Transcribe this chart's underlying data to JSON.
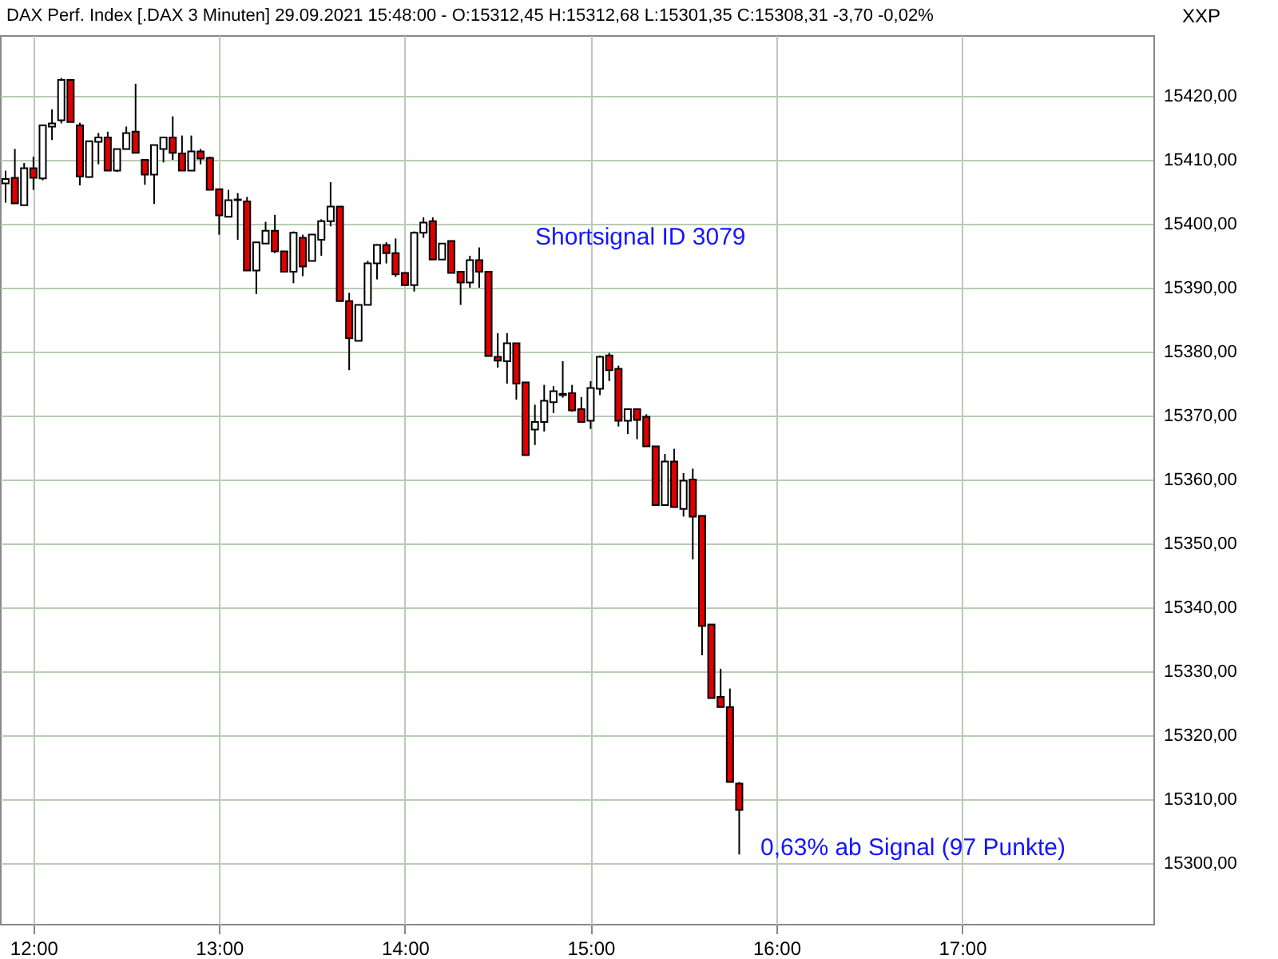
{
  "chart_data": {
    "type": "candlestick",
    "title": "DAX Perf. Index [.DAX  3 Minuten] 29.09.2021 15:48:00 - O:15312,45 H:15312,68 L:15301,35 C:15308,31 -3,70 -0,02%",
    "x": [
      11.85,
      11.9,
      11.95,
      12,
      12.05,
      12.1,
      12.15,
      12.2,
      12.25,
      12.3,
      12.35,
      12.4,
      12.45,
      12.5,
      12.55,
      12.6,
      12.65,
      12.7,
      12.75,
      12.8,
      12.85,
      12.9,
      12.95,
      13,
      13.05,
      13.1,
      13.15,
      13.2,
      13.25,
      13.3,
      13.35,
      13.4,
      13.45,
      13.5,
      13.55,
      13.6,
      13.65,
      13.7,
      13.75,
      13.8,
      13.85,
      13.9,
      13.95,
      14,
      14.05,
      14.1,
      14.15,
      14.2,
      14.25,
      14.3,
      14.35,
      14.4,
      14.45,
      14.5,
      14.55,
      14.6,
      14.65,
      14.7,
      14.75,
      14.8,
      14.85,
      14.9,
      14.95,
      15,
      15.05,
      15.1,
      15.15,
      15.2,
      15.25,
      15.3,
      15.35,
      15.4,
      15.45,
      15.5,
      15.55,
      15.6,
      15.65,
      15.7,
      15.75,
      15.8
    ],
    "ohlc": [
      [
        15406.3,
        15408.3,
        15403.3,
        15407
      ],
      [
        15407.2,
        15411.7,
        15403.2,
        15403.2
      ],
      [
        15402.9,
        15409.5,
        15402.9,
        15408.7
      ],
      [
        15408.7,
        15410.5,
        15405.3,
        15407.2
      ],
      [
        15407.1,
        15415.4,
        15406.8,
        15415.4
      ],
      [
        15415.2,
        15417.9,
        15413.1,
        15415.7
      ],
      [
        15416.2,
        15422.8,
        15415.7,
        15422.5
      ],
      [
        15422.5,
        15422.5,
        15415.9,
        15415.9
      ],
      [
        15415.4,
        15415.8,
        15406,
        15407.4
      ],
      [
        15407.3,
        15413,
        15407.2,
        15412.9
      ],
      [
        15412.8,
        15414.2,
        15409.3,
        15413.5
      ],
      [
        15413.5,
        15414.4,
        15408.3,
        15408.3
      ],
      [
        15408.3,
        15411.7,
        15408.1,
        15411.7
      ],
      [
        15411.7,
        15415.2,
        15411.7,
        15414.2
      ],
      [
        15414.4,
        15421.9,
        15411.1,
        15411.1
      ],
      [
        15410,
        15410,
        15406.1,
        15407.7
      ],
      [
        15407.7,
        15412.3,
        15403.1,
        15412.3
      ],
      [
        15411.7,
        15413.5,
        15409.6,
        15413.5
      ],
      [
        15413.5,
        15416.8,
        15410,
        15411.1
      ],
      [
        15411,
        15413.8,
        15408.3,
        15408.3
      ],
      [
        15408.3,
        15413.8,
        15408.3,
        15411.3
      ],
      [
        15411.3,
        15411.7,
        15409.3,
        15410.2
      ],
      [
        15410.3,
        15410.5,
        15405.3,
        15405.3
      ],
      [
        15405.4,
        15405.4,
        15398.3,
        15401.3
      ],
      [
        15401.1,
        15405.3,
        15401.1,
        15403.7
      ],
      [
        15403.7,
        15404.8,
        15397.5,
        15403.8
      ],
      [
        15403.5,
        15404.2,
        15392.7,
        15392.7
      ],
      [
        15392.7,
        15397.1,
        15389,
        15397.1
      ],
      [
        15396.9,
        15400.3,
        15396.9,
        15398.9
      ],
      [
        15398.9,
        15401.4,
        15395.4,
        15395.7
      ],
      [
        15395.7,
        15395.7,
        15392.5,
        15392.5
      ],
      [
        15392.5,
        15398.8,
        15390.7,
        15398.6
      ],
      [
        15397.8,
        15398.3,
        15391.8,
        15393.3
      ],
      [
        15394.2,
        15398.3,
        15394.2,
        15398.3
      ],
      [
        15397.5,
        15400.7,
        15395,
        15400.4
      ],
      [
        15400.4,
        15406.5,
        15399.6,
        15402.7
      ],
      [
        15402.7,
        15402.7,
        15387.9,
        15387.9
      ],
      [
        15387.9,
        15389.2,
        15377.1,
        15382.1
      ],
      [
        15381.7,
        15387.3,
        15381.7,
        15387.3
      ],
      [
        15387.3,
        15394.2,
        15387.3,
        15393.8
      ],
      [
        15393.8,
        15396.8,
        15391.3,
        15396.7
      ],
      [
        15396.7,
        15397.1,
        15393.8,
        15395.4
      ],
      [
        15395.4,
        15397.7,
        15391.7,
        15392.1
      ],
      [
        15392.3,
        15392.3,
        15390.4,
        15390.4
      ],
      [
        15390.4,
        15398.8,
        15389.4,
        15398.6
      ],
      [
        15398.6,
        15401,
        15397.8,
        15400.2
      ],
      [
        15400.4,
        15401,
        15394.4,
        15394.4
      ],
      [
        15394.4,
        15396.9,
        15394.4,
        15396.9
      ],
      [
        15397.3,
        15397.3,
        15392.3,
        15392.3
      ],
      [
        15392.5,
        15392.5,
        15387.3,
        15390.8
      ],
      [
        15390.8,
        15395,
        15390,
        15394.3
      ],
      [
        15394.3,
        15396.3,
        15390,
        15392.5
      ],
      [
        15392.5,
        15392.5,
        15379.3,
        15379.3
      ],
      [
        15379.2,
        15382.9,
        15377.5,
        15378.6
      ],
      [
        15378.5,
        15382.9,
        15375,
        15381.3
      ],
      [
        15381.3,
        15381.3,
        15372.5,
        15375
      ],
      [
        15375.2,
        15375.2,
        15363.8,
        15363.8
      ],
      [
        15367.8,
        15371.7,
        15365.4,
        15369
      ],
      [
        15369,
        15374.8,
        15367.5,
        15372.3
      ],
      [
        15372.1,
        15374.6,
        15370.4,
        15373.8
      ],
      [
        15373.2,
        15378.5,
        15372.8,
        15373.4
      ],
      [
        15373.5,
        15374.8,
        15370.6,
        15370.8
      ],
      [
        15371,
        15372.9,
        15369,
        15369
      ],
      [
        15369.2,
        15375.4,
        15367.9,
        15374.3
      ],
      [
        15374.2,
        15379.4,
        15373.2,
        15379.2
      ],
      [
        15379.4,
        15379.8,
        15375.4,
        15377.1
      ],
      [
        15377.3,
        15377.8,
        15368.3,
        15369.2
      ],
      [
        15369.2,
        15371,
        15367.1,
        15371
      ],
      [
        15371,
        15371,
        15366.3,
        15369.3
      ],
      [
        15369.8,
        15370.2,
        15365.2,
        15365.2
      ],
      [
        15365.2,
        15365.2,
        15356,
        15356
      ],
      [
        15356,
        15364,
        15356,
        15362.8
      ],
      [
        15362.8,
        15364.8,
        15355.7,
        15355.7
      ],
      [
        15355.4,
        15361,
        15354.2,
        15359.8
      ],
      [
        15360,
        15361.7,
        15347.5,
        15354.2
      ],
      [
        15354.3,
        15354.3,
        15332.5,
        15337.1
      ],
      [
        15337.3,
        15337.3,
        15325.8,
        15325.8
      ],
      [
        15326,
        15330.4,
        15324.4,
        15324.4
      ],
      [
        15324.4,
        15327.3,
        15312.7,
        15312.7
      ],
      [
        15312.45,
        15312.68,
        15301.35,
        15308.31
      ]
    ],
    "xlim": [
      11.82,
      18.03
    ],
    "xticks": [
      {
        "value": 12,
        "label": "12:00"
      },
      {
        "value": 13,
        "label": "13:00"
      },
      {
        "value": 14,
        "label": "14:00"
      },
      {
        "value": 15,
        "label": "15:00"
      },
      {
        "value": 16,
        "label": "16:00"
      },
      {
        "value": 17,
        "label": "17:00"
      }
    ],
    "ylim": [
      15290.5,
      15429.5
    ],
    "yticks": [
      {
        "value": 15300,
        "label": "15300,00"
      },
      {
        "value": 15310,
        "label": "15310,00"
      },
      {
        "value": 15320,
        "label": "15320,00"
      },
      {
        "value": 15330,
        "label": "15330,00"
      },
      {
        "value": 15340,
        "label": "15340,00"
      },
      {
        "value": 15350,
        "label": "15350,00"
      },
      {
        "value": 15360,
        "label": "15360,00"
      },
      {
        "value": 15370,
        "label": "15370,00"
      },
      {
        "value": 15380,
        "label": "15380,00"
      },
      {
        "value": 15390,
        "label": "15390,00"
      },
      {
        "value": 15400,
        "label": "15400,00"
      },
      {
        "value": 15410,
        "label": "15410,00"
      },
      {
        "value": 15420,
        "label": "15420,00"
      }
    ],
    "grid": true,
    "annotations": [
      "Shortsignal ID 3079",
      "0,63% ab Signal (97 Punkte)",
      "XXP"
    ]
  }
}
